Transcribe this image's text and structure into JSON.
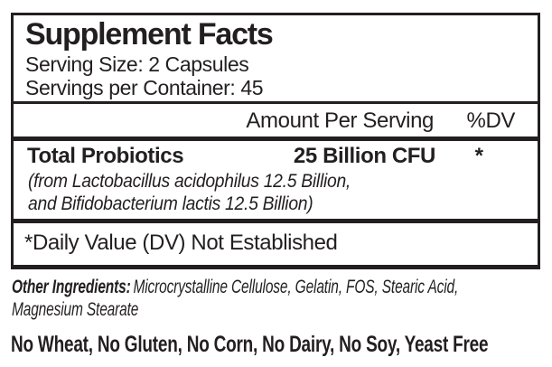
{
  "colors": {
    "ink": "#231f20",
    "background": "#ffffff"
  },
  "supplement_facts": {
    "title": "Supplement Facts",
    "serving_size": "Serving Size: 2 Capsules",
    "servings_per_container": "Servings per Container: 45",
    "header": {
      "amount_per_serving": "Amount Per Serving",
      "dv": "%DV"
    },
    "rows": [
      {
        "name": "Total Probiotics",
        "amount": "25 Billion CFU",
        "dv": "*",
        "detail_lines": [
          "(from Lactobacillus acidophilus 12.5 Billion,",
          "and Bifidobacterium lactis 12.5 Billion)"
        ]
      }
    ],
    "footnote": "*Daily Value (DV) Not Established"
  },
  "other_ingredients": {
    "label": "Other Ingredients:",
    "lines": [
      "Microcrystalline Cellulose, Gelatin, FOS, Stearic Acid,",
      "Magnesium Stearate"
    ]
  },
  "allergen_statement": "No Wheat, No Gluten, No Corn, No Dairy, No Soy, Yeast Free"
}
